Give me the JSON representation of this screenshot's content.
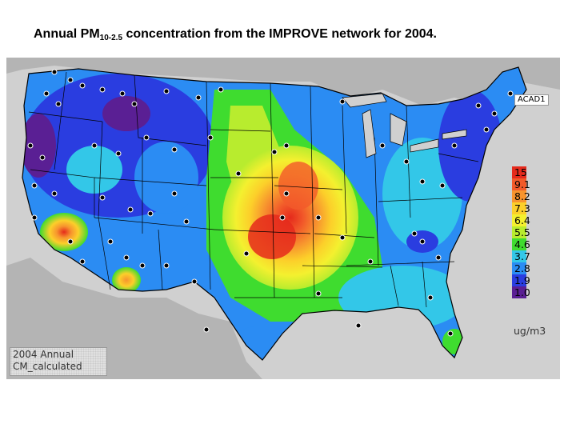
{
  "title": {
    "prefix": "Annual PM",
    "subscript": "10-2.5",
    "suffix": " concentration from the IMPROVE network for 2004."
  },
  "panel_label": {
    "line1": "2004 Annual",
    "line2": "CM_calculated"
  },
  "station_label": "ACAD1",
  "legend": {
    "levels": [
      {
        "value": "15",
        "color": "#e52a1c"
      },
      {
        "value": "9.1",
        "color": "#f25a2a"
      },
      {
        "value": "8.2",
        "color": "#f7942e"
      },
      {
        "value": "7.3",
        "color": "#fccf2a"
      },
      {
        "value": "6.4",
        "color": "#f4f02f"
      },
      {
        "value": "5.5",
        "color": "#b8ec2e"
      },
      {
        "value": "4.6",
        "color": "#3fdc2f"
      },
      {
        "value": "3.7",
        "color": "#33c7e8"
      },
      {
        "value": "2.8",
        "color": "#2b8cf3"
      },
      {
        "value": "1.9",
        "color": "#2a3de0"
      },
      {
        "value": "1.0",
        "color": "#5a1f94"
      }
    ],
    "unit": "ug/m3"
  },
  "colors": {
    "land_outside": "#b7b7b7",
    "ocean": "#d6d6d6",
    "state_lines": "#000000",
    "station_dot": "#000000"
  }
}
